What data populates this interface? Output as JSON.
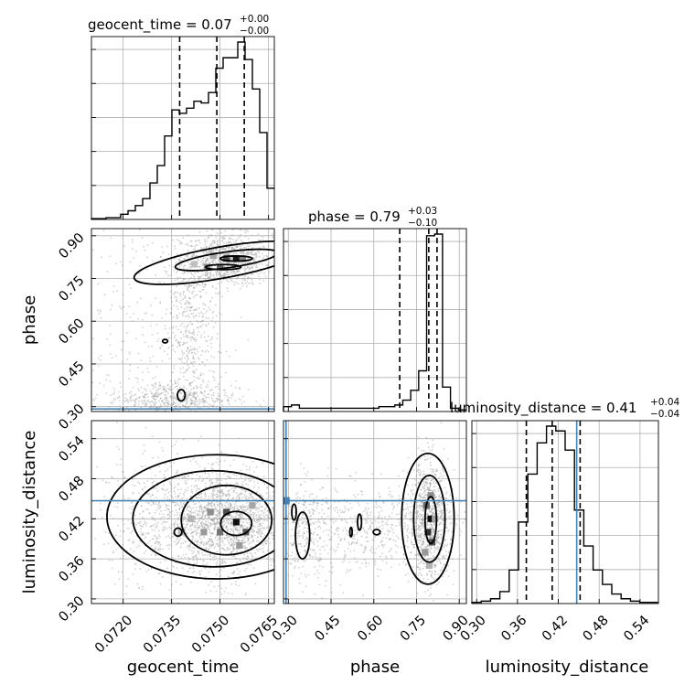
{
  "chart_data": {
    "type": "corner",
    "parameters": [
      "geocent_time",
      "phase",
      "luminosity_distance"
    ],
    "axis_ranges": {
      "geocent_time": [
        0.07102,
        0.07668
      ],
      "phase": [
        0.283,
        0.925
      ],
      "luminosity_distance": [
        0.293,
        0.567
      ]
    },
    "ticks": {
      "geocent_time": [
        "0.0720",
        "0.0735",
        "0.0750",
        "0.0765"
      ],
      "phase": [
        "0.30",
        "0.45",
        "0.60",
        "0.75",
        "0.90"
      ],
      "luminosity_distance": [
        "0.30",
        "0.36",
        "0.42",
        "0.48",
        "0.54"
      ]
    },
    "truths": {
      "phase": 0.292,
      "luminosity_distance": 0.447
    },
    "marginal_titles": [
      {
        "label": "geocent_time = 0.07",
        "upper": "+0.00",
        "lower": "−0.00"
      },
      {
        "label": "phase = 0.79",
        "upper": "+0.03",
        "lower": "−0.10"
      },
      {
        "label": "luminosity_distance = 0.41",
        "upper": "+0.04",
        "lower": "−0.04"
      }
    ],
    "histograms": {
      "geocent_time": {
        "range": [
          0.07102,
          0.07668
        ],
        "counts": [
          0.5,
          0.5,
          1,
          1,
          3,
          5,
          8,
          12,
          21,
          31,
          48,
          63,
          61,
          64,
          68,
          67,
          73,
          87,
          93,
          93,
          102,
          92,
          75,
          50,
          18
        ],
        "quantiles": [
          0.07375,
          0.0749,
          0.07575
        ]
      },
      "phase": {
        "range": [
          0.283,
          0.925
        ],
        "counts": [
          3,
          4,
          2,
          2,
          2,
          2,
          2,
          2,
          2,
          2,
          2,
          2,
          3,
          3,
          4,
          7,
          13,
          25,
          108,
          109,
          15,
          2,
          1
        ],
        "quantiles": [
          0.691,
          0.793,
          0.822
        ]
      },
      "luminosity_distance": {
        "range": [
          0.293,
          0.567
        ],
        "counts": [
          0.5,
          1,
          2,
          5,
          14,
          34,
          54,
          67,
          74,
          72,
          64,
          39,
          24,
          14,
          8,
          4,
          2,
          1,
          0.5,
          0.5
        ],
        "quantiles": [
          0.373,
          0.411,
          0.452
        ]
      }
    },
    "xlabels": [
      "geocent_time",
      "phase",
      "luminosity_distance"
    ],
    "ylabels": [
      "phase",
      "luminosity_distance"
    ],
    "grid": true
  }
}
